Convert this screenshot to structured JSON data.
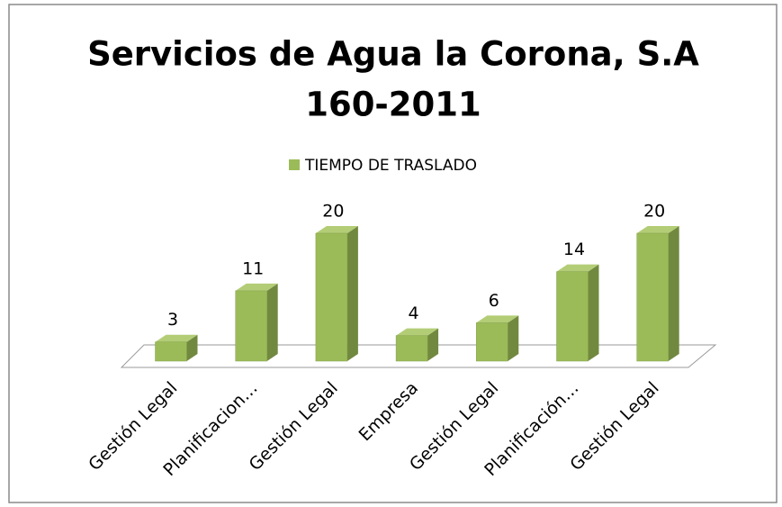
{
  "chart_data": {
    "type": "bar3d",
    "title": [
      "Servicios de Agua la Corona, S.A",
      "160-2011"
    ],
    "categories": [
      "Gestión Legal",
      "Planificacion…",
      "Gestión Legal",
      "Empresa",
      "Gestión Legal",
      "Planificación…",
      "Gestión Legal"
    ],
    "series": [
      {
        "name": "TIEMPO DE TRASLADO",
        "color": "#9bbb59",
        "values": [
          3,
          11,
          20,
          4,
          6,
          14,
          20
        ]
      }
    ],
    "ylim": [
      0,
      20
    ],
    "legend": "top",
    "data_labels": true
  }
}
